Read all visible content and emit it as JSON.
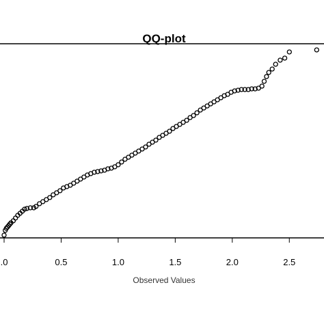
{
  "chart_data": {
    "type": "scatter",
    "title": "QQ-plot",
    "xlabel": "Observed Values",
    "ylabel": "",
    "xlim": [
      0.0,
      2.78
    ],
    "ylim": [
      0.0,
      2.8
    ],
    "x_ticks": [
      0.0,
      0.5,
      1.0,
      1.5,
      2.0,
      2.5
    ],
    "x_tick_labels": [
      ".0",
      "0.5",
      "1.0",
      "1.5",
      "2.0",
      "2.5"
    ],
    "grid": false,
    "legend": "none",
    "marker": "open-circle",
    "series": [
      {
        "values": [
          [
            0.0,
            0.02
          ],
          [
            0.01,
            0.09
          ],
          [
            0.02,
            0.12
          ],
          [
            0.03,
            0.14
          ],
          [
            0.04,
            0.16
          ],
          [
            0.05,
            0.18
          ],
          [
            0.06,
            0.2
          ],
          [
            0.08,
            0.23
          ],
          [
            0.1,
            0.27
          ],
          [
            0.12,
            0.31
          ],
          [
            0.14,
            0.34
          ],
          [
            0.16,
            0.37
          ],
          [
            0.18,
            0.4
          ],
          [
            0.2,
            0.41
          ],
          [
            0.23,
            0.42
          ],
          [
            0.26,
            0.42
          ],
          [
            0.28,
            0.44
          ],
          [
            0.31,
            0.48
          ],
          [
            0.34,
            0.51
          ],
          [
            0.37,
            0.54
          ],
          [
            0.4,
            0.57
          ],
          [
            0.43,
            0.61
          ],
          [
            0.46,
            0.64
          ],
          [
            0.49,
            0.67
          ],
          [
            0.52,
            0.71
          ],
          [
            0.55,
            0.73
          ],
          [
            0.58,
            0.75
          ],
          [
            0.61,
            0.78
          ],
          [
            0.64,
            0.81
          ],
          [
            0.67,
            0.84
          ],
          [
            0.7,
            0.87
          ],
          [
            0.73,
            0.9
          ],
          [
            0.76,
            0.92
          ],
          [
            0.79,
            0.94
          ],
          [
            0.82,
            0.95
          ],
          [
            0.85,
            0.96
          ],
          [
            0.88,
            0.97
          ],
          [
            0.91,
            0.99
          ],
          [
            0.94,
            1.0
          ],
          [
            0.97,
            1.02
          ],
          [
            1.0,
            1.05
          ],
          [
            1.03,
            1.09
          ],
          [
            1.06,
            1.13
          ],
          [
            1.09,
            1.16
          ],
          [
            1.12,
            1.19
          ],
          [
            1.15,
            1.22
          ],
          [
            1.18,
            1.25
          ],
          [
            1.21,
            1.28
          ],
          [
            1.24,
            1.31
          ],
          [
            1.27,
            1.35
          ],
          [
            1.3,
            1.38
          ],
          [
            1.33,
            1.41
          ],
          [
            1.36,
            1.45
          ],
          [
            1.39,
            1.48
          ],
          [
            1.42,
            1.51
          ],
          [
            1.45,
            1.54
          ],
          [
            1.48,
            1.58
          ],
          [
            1.51,
            1.61
          ],
          [
            1.54,
            1.64
          ],
          [
            1.57,
            1.67
          ],
          [
            1.6,
            1.7
          ],
          [
            1.63,
            1.74
          ],
          [
            1.66,
            1.77
          ],
          [
            1.69,
            1.81
          ],
          [
            1.72,
            1.85
          ],
          [
            1.75,
            1.88
          ],
          [
            1.78,
            1.91
          ],
          [
            1.81,
            1.94
          ],
          [
            1.84,
            1.97
          ],
          [
            1.87,
            2.0
          ],
          [
            1.9,
            2.03
          ],
          [
            1.93,
            2.06
          ],
          [
            1.96,
            2.08
          ],
          [
            1.99,
            2.11
          ],
          [
            2.02,
            2.13
          ],
          [
            2.05,
            2.14
          ],
          [
            2.08,
            2.15
          ],
          [
            2.11,
            2.15
          ],
          [
            2.14,
            2.15
          ],
          [
            2.17,
            2.16
          ],
          [
            2.2,
            2.16
          ],
          [
            2.23,
            2.17
          ],
          [
            2.26,
            2.2
          ],
          [
            2.28,
            2.27
          ],
          [
            2.3,
            2.34
          ],
          [
            2.32,
            2.4
          ],
          [
            2.35,
            2.45
          ],
          [
            2.38,
            2.52
          ],
          [
            2.42,
            2.58
          ],
          [
            2.46,
            2.61
          ],
          [
            2.5,
            2.7
          ],
          [
            2.74,
            2.73
          ]
        ]
      }
    ]
  }
}
